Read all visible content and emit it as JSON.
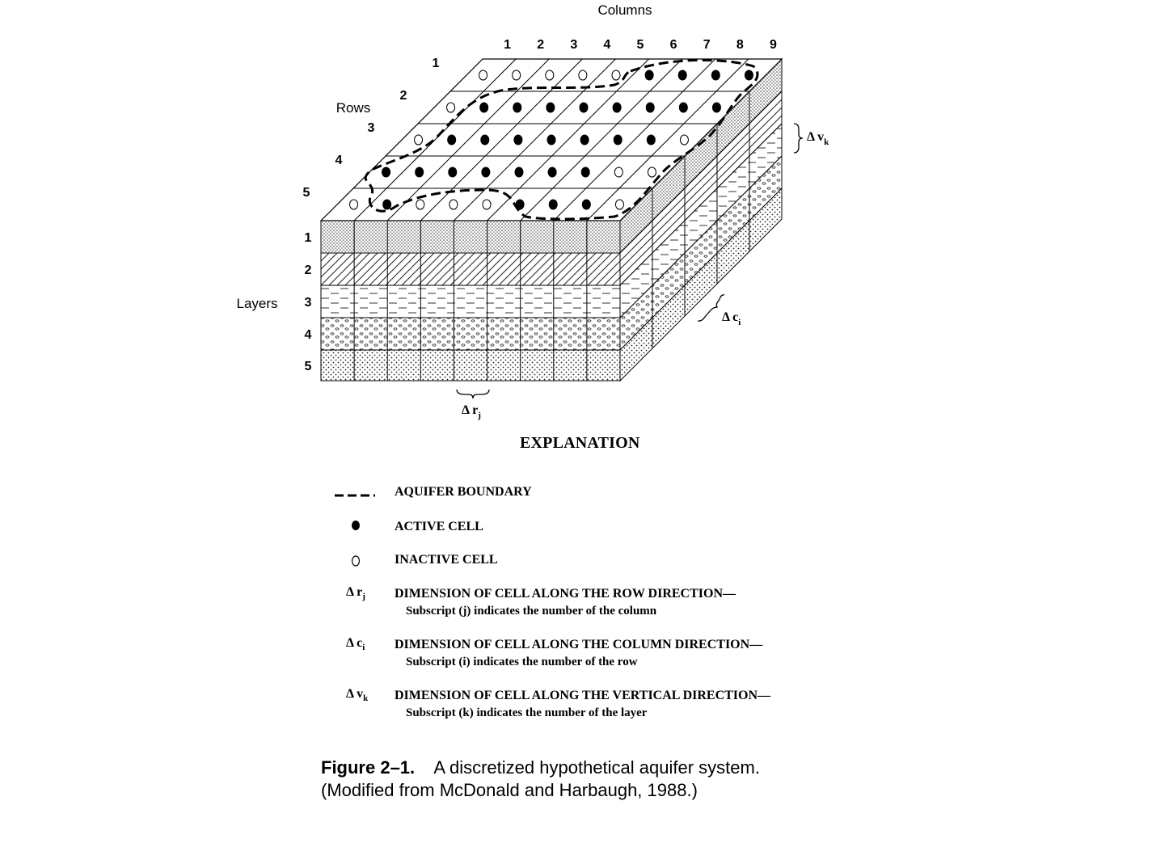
{
  "diagram": {
    "columns_label": "Columns",
    "rows_label": "Rows",
    "layers_label": "Layers",
    "column_numbers": [
      "1",
      "2",
      "3",
      "4",
      "5",
      "6",
      "7",
      "8",
      "9"
    ],
    "row_numbers": [
      "1",
      "2",
      "3",
      "4",
      "5"
    ],
    "layer_numbers": [
      "1",
      "2",
      "3",
      "4",
      "5"
    ],
    "delta_r": "Δ r",
    "delta_r_sub": "j",
    "delta_c": "Δ c",
    "delta_c_sub": "i",
    "delta_v": "Δ v",
    "delta_v_sub": "k",
    "cells": [
      [
        0,
        0,
        0,
        0,
        0,
        1,
        1,
        1,
        1
      ],
      [
        0,
        1,
        1,
        1,
        1,
        1,
        1,
        1,
        1
      ],
      [
        0,
        1,
        1,
        1,
        1,
        1,
        1,
        1,
        0
      ],
      [
        1,
        1,
        1,
        1,
        1,
        1,
        1,
        0,
        0
      ],
      [
        0,
        1,
        0,
        0,
        0,
        1,
        1,
        1,
        0
      ]
    ]
  },
  "explanation": {
    "title": "EXPLANATION",
    "items": [
      {
        "symbol": "dashed-line",
        "label": "AQUIFER BOUNDARY",
        "sub": ""
      },
      {
        "symbol": "filled-dot",
        "label": "ACTIVE CELL",
        "sub": ""
      },
      {
        "symbol": "open-dot",
        "label": "INACTIVE CELL",
        "sub": ""
      },
      {
        "symbol": "delta-r",
        "sym_main": "Δ r",
        "sym_sub": "j",
        "label": "DIMENSION OF CELL ALONG THE ROW DIRECTION—",
        "sub": "Subscript (j) indicates the number of the column"
      },
      {
        "symbol": "delta-c",
        "sym_main": "Δ c",
        "sym_sub": "i",
        "label": "DIMENSION OF CELL ALONG THE COLUMN DIRECTION—",
        "sub": "Subscript (i) indicates the number of the row"
      },
      {
        "symbol": "delta-v",
        "sym_main": "Δ v",
        "sym_sub": "k",
        "label": "DIMENSION OF CELL ALONG THE VERTICAL DIRECTION—",
        "sub": "Subscript (k) indicates the number of the layer"
      }
    ]
  },
  "caption": {
    "label": "Figure 2–1.",
    "text": "A discretized hypothetical aquifer system. (Modified from McDonald and Harbaugh, 1988.)"
  }
}
